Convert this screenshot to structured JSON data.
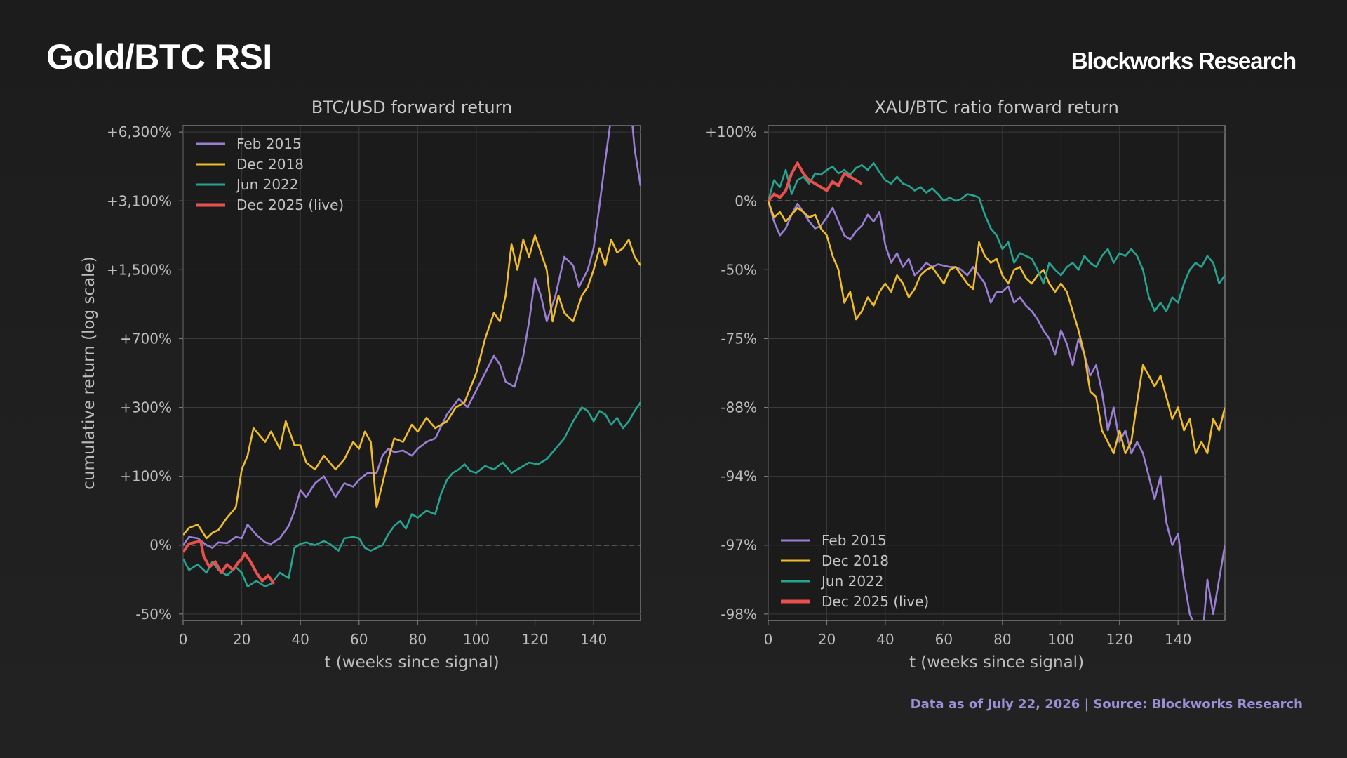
{
  "header": {
    "title": "Gold/BTC RSI",
    "brand": "Blockworks Research"
  },
  "footer": {
    "source": "Data as of July 22, 2026 | Source: Blockworks Research"
  },
  "colors": {
    "Feb 2015": "#9b7fd6",
    "Dec 2018": "#f0bd2a",
    "Jun 2022": "#26a492",
    "Dec 2025 (live)": "#e8504d",
    "grid": "#3a3a3a",
    "zero_line": "#8a8a8a",
    "axis": "#7a7a7a"
  },
  "chart_data": [
    {
      "type": "line",
      "title": "BTC/USD forward return",
      "xlabel": "t (weeks since signal)",
      "ylabel": "cumulative return (log scale)",
      "y_scale": "log",
      "grid": true,
      "legend_position": "top-left",
      "xlim": [
        0,
        156
      ],
      "xticks": [
        0,
        20,
        40,
        60,
        80,
        100,
        120,
        140
      ],
      "xtick_labels": [
        "0",
        "20",
        "40",
        "60",
        "80",
        "100",
        "120",
        "140"
      ],
      "yticks": [
        -50,
        0,
        100,
        300,
        700,
        1500,
        3100,
        6300
      ],
      "ytick_labels": [
        "-50%",
        "0%",
        "+100%",
        "+300%",
        "+700%",
        "+1,500%",
        "+3,100%",
        "+6,300%"
      ],
      "ylim": [
        -50,
        12700
      ],
      "reference_line": {
        "y": 0,
        "style": "dashed"
      },
      "series": [
        {
          "name": "Feb 2015",
          "x": [
            0,
            2,
            5,
            8,
            10,
            12,
            15,
            18,
            20,
            22,
            25,
            28,
            30,
            33,
            36,
            38,
            40,
            42,
            45,
            48,
            50,
            52,
            55,
            58,
            60,
            63,
            66,
            68,
            70,
            72,
            75,
            78,
            80,
            83,
            86,
            90,
            94,
            97,
            100,
            103,
            106,
            108,
            110,
            113,
            116,
            118,
            120,
            122,
            124,
            127,
            130,
            133,
            135,
            138,
            140,
            142,
            144,
            146,
            148,
            150,
            152,
            154,
            156
          ],
          "y": [
            0,
            12,
            10,
            0,
            -2,
            4,
            3,
            12,
            10,
            30,
            15,
            4,
            2,
            10,
            28,
            50,
            80,
            70,
            90,
            100,
            85,
            70,
            90,
            85,
            95,
            110,
            110,
            160,
            180,
            170,
            175,
            160,
            180,
            200,
            210,
            280,
            350,
            300,
            400,
            500,
            600,
            550,
            450,
            420,
            600,
            900,
            1400,
            1200,
            900,
            1200,
            1800,
            1600,
            1300,
            1500,
            2000,
            3000,
            5000,
            7000,
            12000,
            9000,
            8500,
            5500,
            3800
          ]
        },
        {
          "name": "Dec 2018",
          "x": [
            0,
            2,
            5,
            8,
            10,
            12,
            15,
            18,
            20,
            22,
            24,
            26,
            28,
            30,
            33,
            35,
            38,
            40,
            42,
            45,
            48,
            50,
            52,
            55,
            58,
            60,
            62,
            64,
            66,
            68,
            70,
            72,
            75,
            78,
            80,
            83,
            86,
            90,
            93,
            96,
            100,
            103,
            106,
            108,
            110,
            112,
            114,
            116,
            118,
            120,
            122,
            124,
            126,
            128,
            130,
            133,
            136,
            138,
            140,
            142,
            144,
            146,
            148,
            150,
            152,
            154,
            156
          ],
          "y": [
            15,
            25,
            30,
            10,
            18,
            22,
            40,
            55,
            120,
            160,
            240,
            220,
            200,
            230,
            180,
            260,
            190,
            190,
            140,
            120,
            160,
            140,
            120,
            150,
            200,
            180,
            230,
            200,
            55,
            90,
            150,
            210,
            200,
            250,
            230,
            270,
            240,
            260,
            300,
            330,
            500,
            700,
            1000,
            900,
            1200,
            2100,
            1500,
            2200,
            1800,
            2300,
            1900,
            1500,
            900,
            1200,
            1000,
            900,
            1200,
            1300,
            1500,
            2000,
            1600,
            2200,
            1900,
            2000,
            2200,
            1800,
            1600
          ]
        },
        {
          "name": "Jun 2022",
          "x": [
            0,
            2,
            5,
            8,
            10,
            12,
            15,
            18,
            20,
            22,
            25,
            28,
            30,
            33,
            36,
            38,
            40,
            42,
            45,
            48,
            50,
            53,
            55,
            58,
            60,
            62,
            64,
            66,
            68,
            70,
            72,
            74,
            76,
            78,
            80,
            83,
            86,
            88,
            90,
            92,
            94,
            96,
            98,
            100,
            103,
            106,
            109,
            112,
            115,
            118,
            121,
            124,
            127,
            130,
            133,
            136,
            138,
            140,
            142,
            144,
            146,
            148,
            150,
            152,
            154,
            156
          ],
          "y": [
            -10,
            -18,
            -14,
            -20,
            -12,
            -18,
            -22,
            -16,
            -20,
            -30,
            -26,
            -30,
            -28,
            -20,
            -24,
            -2,
            2,
            4,
            0,
            6,
            2,
            -4,
            10,
            12,
            10,
            -2,
            -4,
            -2,
            0,
            16,
            28,
            35,
            24,
            45,
            40,
            50,
            45,
            75,
            95,
            110,
            120,
            135,
            115,
            110,
            130,
            120,
            140,
            110,
            125,
            140,
            135,
            150,
            180,
            210,
            260,
            300,
            290,
            260,
            290,
            280,
            250,
            270,
            240,
            260,
            290,
            330
          ]
        },
        {
          "name": "Dec 2025 (live)",
          "x": [
            0,
            2,
            4,
            6,
            7,
            9,
            11,
            13,
            15,
            17,
            19,
            20,
            21,
            23,
            25,
            27,
            29,
            31
          ],
          "y": [
            -5,
            2,
            4,
            6,
            -8,
            -16,
            -12,
            -20,
            -14,
            -18,
            -12,
            -10,
            -6,
            -12,
            -20,
            -26,
            -22,
            -28
          ]
        }
      ]
    },
    {
      "type": "line",
      "title": "XAU/BTC ratio forward return",
      "xlabel": "t (weeks since signal)",
      "ylabel": "",
      "y_scale": "log",
      "grid": true,
      "legend_position": "bottom-left",
      "xlim": [
        0,
        156
      ],
      "xticks": [
        0,
        20,
        40,
        60,
        80,
        100,
        120,
        140
      ],
      "xtick_labels": [
        "0",
        "20",
        "40",
        "60",
        "80",
        "100",
        "120",
        "140"
      ],
      "yticks": [
        100,
        0,
        -50,
        -75,
        -88,
        -94,
        -97,
        -98
      ],
      "ytick_labels": [
        "+100%",
        "0%",
        "-50%",
        "-75%",
        "-88%",
        "-94%",
        "-97%",
        "-98%"
      ],
      "ylim": [
        -98.6,
        100
      ],
      "reference_line": {
        "y": 0,
        "style": "dashed"
      },
      "series": [
        {
          "name": "Feb 2015",
          "x": [
            0,
            2,
            4,
            6,
            8,
            10,
            12,
            14,
            16,
            18,
            20,
            22,
            24,
            26,
            28,
            30,
            32,
            34,
            36,
            38,
            40,
            42,
            44,
            46,
            48,
            50,
            52,
            54,
            56,
            58,
            60,
            62,
            64,
            66,
            68,
            70,
            72,
            74,
            76,
            78,
            80,
            82,
            84,
            86,
            88,
            90,
            92,
            94,
            96,
            98,
            100,
            102,
            104,
            106,
            108,
            110,
            112,
            114,
            116,
            118,
            120,
            122,
            124,
            126,
            128,
            130,
            132,
            134,
            136,
            138,
            140,
            142,
            144,
            146,
            148,
            150,
            152,
            154,
            156
          ],
          "y": [
            0,
            -15,
            -25,
            -20,
            -10,
            -2,
            -8,
            -15,
            -20,
            -18,
            -12,
            -5,
            -15,
            -25,
            -28,
            -22,
            -18,
            -10,
            -15,
            -8,
            -32,
            -45,
            -38,
            -48,
            -42,
            -52,
            -50,
            -45,
            -48,
            -46,
            -47,
            -48,
            -48,
            -50,
            -52,
            -48,
            -52,
            -55,
            -62,
            -58,
            -58,
            -56,
            -62,
            -60,
            -63,
            -65,
            -68,
            -72,
            -75,
            -78,
            -72,
            -76,
            -80,
            -75,
            -78,
            -82,
            -80,
            -85,
            -90,
            -88,
            -91,
            -90,
            -92,
            -91,
            -92,
            -94,
            -95,
            -94,
            -96,
            -97,
            -96.5,
            -97.5,
            -98,
            -98.2,
            -98.5,
            -97.5,
            -98,
            -97.5,
            -97
          ]
        },
        {
          "name": "Dec 2018",
          "x": [
            0,
            2,
            4,
            6,
            8,
            10,
            12,
            14,
            16,
            18,
            20,
            22,
            24,
            26,
            28,
            30,
            32,
            34,
            36,
            38,
            40,
            42,
            44,
            46,
            48,
            50,
            52,
            54,
            56,
            58,
            60,
            62,
            64,
            66,
            68,
            70,
            72,
            74,
            76,
            78,
            80,
            82,
            84,
            86,
            88,
            90,
            92,
            94,
            96,
            98,
            100,
            102,
            104,
            106,
            108,
            110,
            112,
            114,
            116,
            118,
            120,
            122,
            124,
            126,
            128,
            130,
            132,
            134,
            136,
            138,
            140,
            142,
            144,
            146,
            148,
            150,
            152,
            154,
            156
          ],
          "y": [
            0,
            -12,
            -8,
            -15,
            -10,
            -5,
            -8,
            -12,
            -10,
            -20,
            -25,
            -40,
            -50,
            -62,
            -58,
            -68,
            -65,
            -60,
            -63,
            -58,
            -55,
            -58,
            -52,
            -55,
            -60,
            -57,
            -52,
            -50,
            -48,
            -52,
            -55,
            -50,
            -48,
            -52,
            -55,
            -57,
            -30,
            -40,
            -45,
            -42,
            -52,
            -55,
            -50,
            -48,
            -53,
            -55,
            -52,
            -50,
            -55,
            -58,
            -55,
            -58,
            -65,
            -72,
            -78,
            -85,
            -86,
            -90,
            -91,
            -92,
            -90,
            -92,
            -91,
            -87,
            -80,
            -82,
            -84,
            -82,
            -86,
            -89,
            -88,
            -90,
            -89,
            -92,
            -91,
            -92,
            -89,
            -90,
            -88
          ]
        },
        {
          "name": "Jun 2022",
          "x": [
            0,
            2,
            4,
            6,
            8,
            10,
            12,
            14,
            16,
            18,
            20,
            22,
            24,
            26,
            28,
            30,
            32,
            34,
            36,
            38,
            40,
            42,
            44,
            46,
            48,
            50,
            52,
            54,
            56,
            58,
            60,
            62,
            64,
            66,
            68,
            70,
            72,
            74,
            76,
            78,
            80,
            82,
            84,
            86,
            88,
            90,
            92,
            94,
            96,
            98,
            100,
            102,
            104,
            106,
            108,
            110,
            112,
            114,
            116,
            118,
            120,
            122,
            124,
            126,
            128,
            130,
            132,
            134,
            136,
            138,
            140,
            142,
            144,
            146,
            148,
            150,
            152,
            154,
            156
          ],
          "y": [
            0,
            30,
            20,
            45,
            10,
            30,
            35,
            25,
            40,
            38,
            45,
            50,
            40,
            45,
            38,
            48,
            52,
            45,
            55,
            42,
            30,
            25,
            35,
            25,
            22,
            15,
            20,
            12,
            18,
            10,
            0,
            5,
            0,
            3,
            10,
            8,
            5,
            -10,
            -20,
            -25,
            -35,
            -30,
            -45,
            -38,
            -40,
            -42,
            -50,
            -55,
            -45,
            -50,
            -52,
            -48,
            -45,
            -50,
            -40,
            -45,
            -48,
            -40,
            -35,
            -45,
            -38,
            -40,
            -35,
            -40,
            -50,
            -60,
            -65,
            -62,
            -65,
            -60,
            -62,
            -55,
            -50,
            -45,
            -48,
            -40,
            -45,
            -55,
            -52
          ]
        },
        {
          "name": "Dec 2025 (live)",
          "x": [
            0,
            2,
            4,
            6,
            8,
            10,
            12,
            14,
            16,
            18,
            20,
            22,
            24,
            26,
            28,
            30,
            32
          ],
          "y": [
            0,
            10,
            5,
            15,
            40,
            55,
            40,
            30,
            25,
            20,
            15,
            28,
            22,
            40,
            35,
            30,
            25
          ]
        }
      ]
    }
  ]
}
